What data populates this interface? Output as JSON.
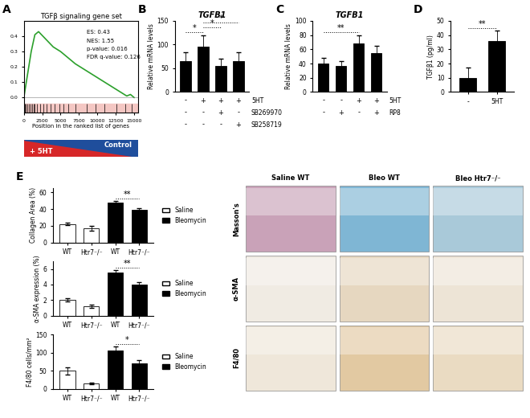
{
  "chart_data": [
    {
      "panel": "A",
      "type": "line",
      "title": "TGFβ signaling gene set",
      "x_label": "Position in the ranked list of genes",
      "x": [
        0,
        500,
        1000,
        1500,
        2000,
        3000,
        4000,
        5000,
        6000,
        7000,
        8000,
        9000,
        10000,
        11000,
        12000,
        13000,
        14000,
        14500,
        15000
      ],
      "values": [
        0,
        0.15,
        0.3,
        0.41,
        0.43,
        0.38,
        0.33,
        0.3,
        0.26,
        0.22,
        0.19,
        0.16,
        0.13,
        0.1,
        0.07,
        0.04,
        0.01,
        0.02,
        0.0
      ],
      "color": "#2ca02c",
      "hits": [
        100,
        300,
        500,
        700,
        900,
        1100,
        1300,
        1500,
        1800,
        2200,
        2600,
        3100,
        3600,
        4200,
        4800,
        5400,
        6000,
        7000,
        8600,
        9800,
        11000,
        12600,
        13800,
        14700
      ],
      "annotations": [
        "ES: 0.43",
        "NES: 1.55",
        "p-value: 0.016",
        "FDR q-value: 0.126"
      ],
      "gradient_labels": [
        "+ 5HT",
        "Control"
      ],
      "xlim": [
        0,
        15500
      ],
      "xticks": [
        0,
        2500,
        5000,
        7500,
        10000,
        12500,
        15000
      ],
      "ylim": [
        -0.1,
        0.5
      ],
      "yticks": [
        {
          "value": 0,
          "label": "0.0"
        },
        0.1,
        0.2,
        0.3,
        0.4
      ]
    },
    {
      "panel": "B",
      "type": "bar",
      "title": "TGFB1",
      "y_label": "Relative mRNA levels",
      "categories": [
        null,
        null,
        null,
        null
      ],
      "values": [
        65,
        95,
        55,
        65
      ],
      "errors": [
        18,
        25,
        15,
        18
      ],
      "color": "#000000",
      "ylim": [
        0,
        150
      ],
      "yticks": [
        0,
        50,
        100,
        150
      ],
      "conditions": [
        {
          "name": "5HT",
          "values": [
            "-",
            "+",
            "+",
            "+"
          ]
        },
        {
          "name": "SB269970",
          "values": [
            "-",
            "-",
            "+",
            "-"
          ]
        },
        {
          "name": "SB258719",
          "values": [
            "-",
            "-",
            "-",
            "+"
          ]
        }
      ],
      "significance": [
        {
          "from": 0,
          "to": 1,
          "label": "*"
        },
        {
          "from": 1,
          "to": 2,
          "label": "*"
        },
        {
          "from": 1,
          "to": 3,
          "label": "*"
        }
      ]
    },
    {
      "panel": "C",
      "type": "bar",
      "title": "TGFB1",
      "y_label": "Relative mRNA levels",
      "categories": [
        null,
        null,
        null,
        null
      ],
      "values": [
        40,
        37,
        68,
        55
      ],
      "errors": [
        8,
        7,
        12,
        10
      ],
      "color": "#000000",
      "ylim": [
        0,
        100
      ],
      "yticks": [
        0,
        20,
        40,
        60,
        80,
        100
      ],
      "conditions": [
        {
          "name": "5HT",
          "values": [
            "-",
            "-",
            "+",
            "+"
          ]
        },
        {
          "name": "RP8",
          "values": [
            "-",
            "+",
            "-",
            "+"
          ]
        }
      ],
      "significance": [
        {
          "from": 0,
          "to": 2,
          "label": "**"
        }
      ]
    },
    {
      "panel": "D",
      "type": "bar",
      "y_label": "TGFβ1 (pg/ml)",
      "categories": [
        "-",
        "5HT"
      ],
      "values": [
        10,
        36
      ],
      "errors": [
        7,
        7
      ],
      "color": "#000000",
      "ylim": [
        0,
        50
      ],
      "yticks": [
        0,
        10,
        20,
        30,
        40,
        50
      ],
      "significance": [
        {
          "from": 0,
          "to": 1,
          "label": "**"
        }
      ]
    },
    {
      "panel": "E",
      "type": "bar",
      "y_label": "Collagen Area (%)",
      "categories": [
        "WT",
        "Htr7⁻/⁻",
        "WT",
        "Htr7⁻/⁻"
      ],
      "series": [
        {
          "name": "Saline",
          "color": "#ffffff",
          "values": [
            22,
            17,
            null,
            null
          ],
          "errors": [
            1.5,
            3,
            null,
            null
          ]
        },
        {
          "name": "Bleomycin",
          "color": "#000000",
          "values": [
            null,
            null,
            48,
            39
          ],
          "errors": [
            null,
            null,
            2,
            2
          ]
        }
      ],
      "ylim": [
        0,
        65
      ],
      "yticks": [
        0,
        20,
        40,
        60
      ],
      "legend": "right",
      "significance": [
        {
          "from": 2,
          "to": 3,
          "label": "**"
        }
      ]
    },
    {
      "type": "bar",
      "y_label": "α-SMA expression (%)",
      "categories": [
        "WT",
        "Htr7⁻/⁻",
        "WT",
        "Htr7⁻/⁻"
      ],
      "series": [
        {
          "name": "Saline",
          "color": "#ffffff",
          "values": [
            2.0,
            1.2,
            null,
            null
          ],
          "errors": [
            0.2,
            0.2,
            null,
            null
          ]
        },
        {
          "name": "Bleomycin",
          "color": "#000000",
          "values": [
            null,
            null,
            5.6,
            4.0
          ],
          "errors": [
            null,
            null,
            0.3,
            0.3
          ]
        }
      ],
      "ylim": [
        0,
        7
      ],
      "yticks": [
        0,
        2,
        4,
        6
      ],
      "legend": "right",
      "significance": [
        {
          "from": 2,
          "to": 3,
          "label": "**"
        }
      ]
    },
    {
      "type": "bar",
      "y_label": "F4/80 cells/mm²",
      "categories": [
        "WT",
        "Htr7⁻/⁻",
        "WT",
        "Htr7⁻/⁻"
      ],
      "series": [
        {
          "name": "Saline",
          "color": "#ffffff",
          "values": [
            50,
            15,
            null,
            null
          ],
          "errors": [
            10,
            2,
            null,
            null
          ]
        },
        {
          "name": "Bleomycin",
          "color": "#000000",
          "values": [
            null,
            null,
            105,
            70
          ],
          "errors": [
            null,
            null,
            12,
            10
          ]
        }
      ],
      "ylim": [
        0,
        150
      ],
      "yticks": [
        0,
        50,
        100,
        150
      ],
      "legend": "right",
      "significance": [
        {
          "from": 2,
          "to": 3,
          "label": "*"
        }
      ]
    }
  ],
  "image_panel": {
    "columns": [
      "Saline WT",
      "Bleo WT",
      "Bleo Htr7⁻/⁻"
    ],
    "rows": [
      "Masson's",
      "α-SMA",
      "F4/80"
    ]
  }
}
